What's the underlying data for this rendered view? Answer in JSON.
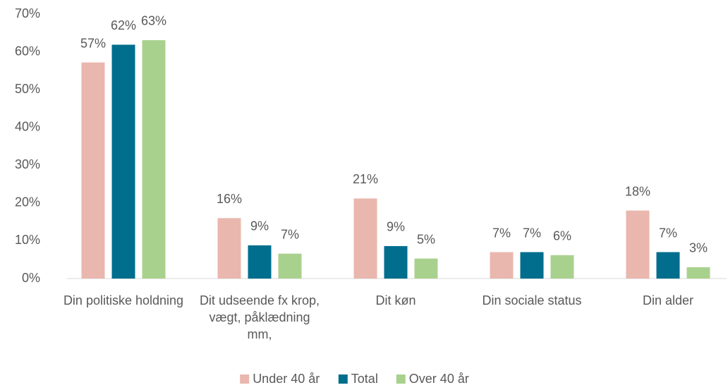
{
  "chart_data": {
    "type": "bar",
    "categories": [
      "Din politiske holdning",
      "Dit udseende fx krop, vægt, påklædning mm,",
      "Dit køn",
      "Din sociale status",
      "Din alder"
    ],
    "series": [
      {
        "name": "Under 40 år",
        "color": "#e9b7ae",
        "values": [
          57.2,
          16.0,
          21.2,
          7.0,
          18.0
        ],
        "value_labels": [
          "57%",
          "16%",
          "21%",
          "7%",
          "18%"
        ]
      },
      {
        "name": "Total",
        "color": "#006e8c",
        "values": [
          61.9,
          8.8,
          8.6,
          7.0,
          7.0
        ],
        "value_labels": [
          "62%",
          "9%",
          "9%",
          "7%",
          "7%"
        ]
      },
      {
        "name": "Over 40 år",
        "color": "#a9d18e",
        "values": [
          63.1,
          6.6,
          5.3,
          6.2,
          3.0
        ],
        "value_labels": [
          "63%",
          "7%",
          "5%",
          "6%",
          "3%"
        ]
      }
    ],
    "ylim": [
      0,
      70
    ],
    "yticks": [
      {
        "value": 0,
        "label": "0%"
      },
      {
        "value": 10,
        "label": "10%"
      },
      {
        "value": 20,
        "label": "20%"
      },
      {
        "value": 30,
        "label": "30%"
      },
      {
        "value": 40,
        "label": "40%"
      },
      {
        "value": 50,
        "label": "50%"
      },
      {
        "value": 60,
        "label": "60%"
      },
      {
        "value": 70,
        "label": "70%"
      }
    ],
    "grid": false,
    "legend": "bottom"
  }
}
